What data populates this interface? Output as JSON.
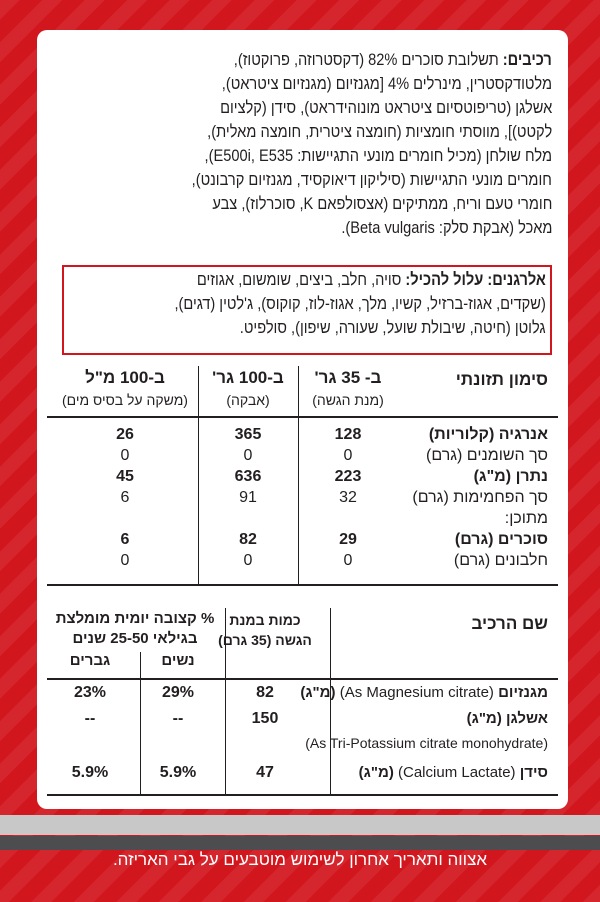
{
  "ingredients": {
    "label": "רכיבים:",
    "lines": [
      "תשלובת סוכרים 82% (דקסטרוזה, פרוקטוז),",
      "מלטודקסטרין, מינרלים 4% [מגנזיום (מגנזיום ציטראט),",
      "אשלגן (טריפוטסיום ציטראט מונוהידראט), סידן (קלציום",
      "לקטט)], מווסתי חומציות (חומצה ציטרית, חומצה מאלית),",
      "מלח שולחן (מכיל חומרים מונעי התגיישות: E500i, E535),",
      "חומרים מונעי התגיישות (סיליקון דיאוקסיד, מגנזיום קרבונט),",
      "חומרי טעם וריח, ממתיקים (אצסולפאם K, סוכרלוז), צבע",
      "מאכל (אבקת סלק: Beta vulgaris)."
    ]
  },
  "allergens": {
    "label": "אלרגנים: עלול להכיל:",
    "lines": [
      "סויה, חלב, ביצים, שומשום, אגוזים",
      "(שקדים, אגוז-ברזיל, קשיו, מלך, אגוז-לוז, קוקוס), ג'לטין (דגים),",
      "גלוטן (חיטה, שיבולת שועל, שעורה, שיפון), סולפיט."
    ]
  },
  "nutrition": {
    "title": "סימון תזונתי",
    "columns": [
      {
        "heading": "ב- 35 גר'",
        "note": "(מנת הגשה)"
      },
      {
        "heading": "ב-100 גר'",
        "note": "(אבקה)"
      },
      {
        "heading": "ב-100 מ\"ל",
        "note": "(משקה על בסיס מים)"
      }
    ],
    "rows": [
      {
        "label": "אנרגיה (קלוריות)",
        "values": [
          128,
          365,
          26
        ],
        "bold": true
      },
      {
        "label": "סך השומנים (גרם)",
        "values": [
          0,
          0,
          0
        ],
        "bold": false
      },
      {
        "label": "נתרן (מ\"ג)",
        "values": [
          223,
          636,
          45
        ],
        "bold": true
      },
      {
        "label": "סך הפחמימות (גרם)",
        "values": [
          32,
          91,
          6
        ],
        "bold": false
      },
      {
        "label": "מתוכן:",
        "bold": false
      },
      {
        "label": "סוכרים (גרם)",
        "values": [
          29,
          82,
          6
        ],
        "bold": true
      },
      {
        "label": "חלבונים (גרם)",
        "values": [
          0,
          0,
          0
        ],
        "bold": false
      }
    ]
  },
  "minerals": {
    "name_heading": "שם הרכיב",
    "amount_heading": [
      "כמות במנת",
      "הגשה (35 גרם)"
    ],
    "rdi_heading": [
      "% קצובה יומית מומלצת",
      "בגילאי 25-50 שנים"
    ],
    "women": "נשים",
    "men": "גברים",
    "rows": [
      {
        "name": "מגנזיום",
        "detail": "(As Magnesium citrate)",
        "unit": "(מ\"ג)",
        "values": [
          82,
          "29%",
          "23%"
        ]
      },
      {
        "name": "אשלגן",
        "unit": "(מ\"ג)",
        "detail": "(As Tri-Potassium citrate monohydrate)",
        "values": [
          150,
          "--",
          "--"
        ]
      },
      {
        "name": "סידן",
        "detail": "(Calcium Lactate)",
        "unit": "(מ\"ג)",
        "values": [
          47,
          "5.9%",
          "5.9%"
        ]
      }
    ]
  },
  "footer": "אצווה ותאריך אחרון לשימוש מוטבעים על גבי האריזה."
}
